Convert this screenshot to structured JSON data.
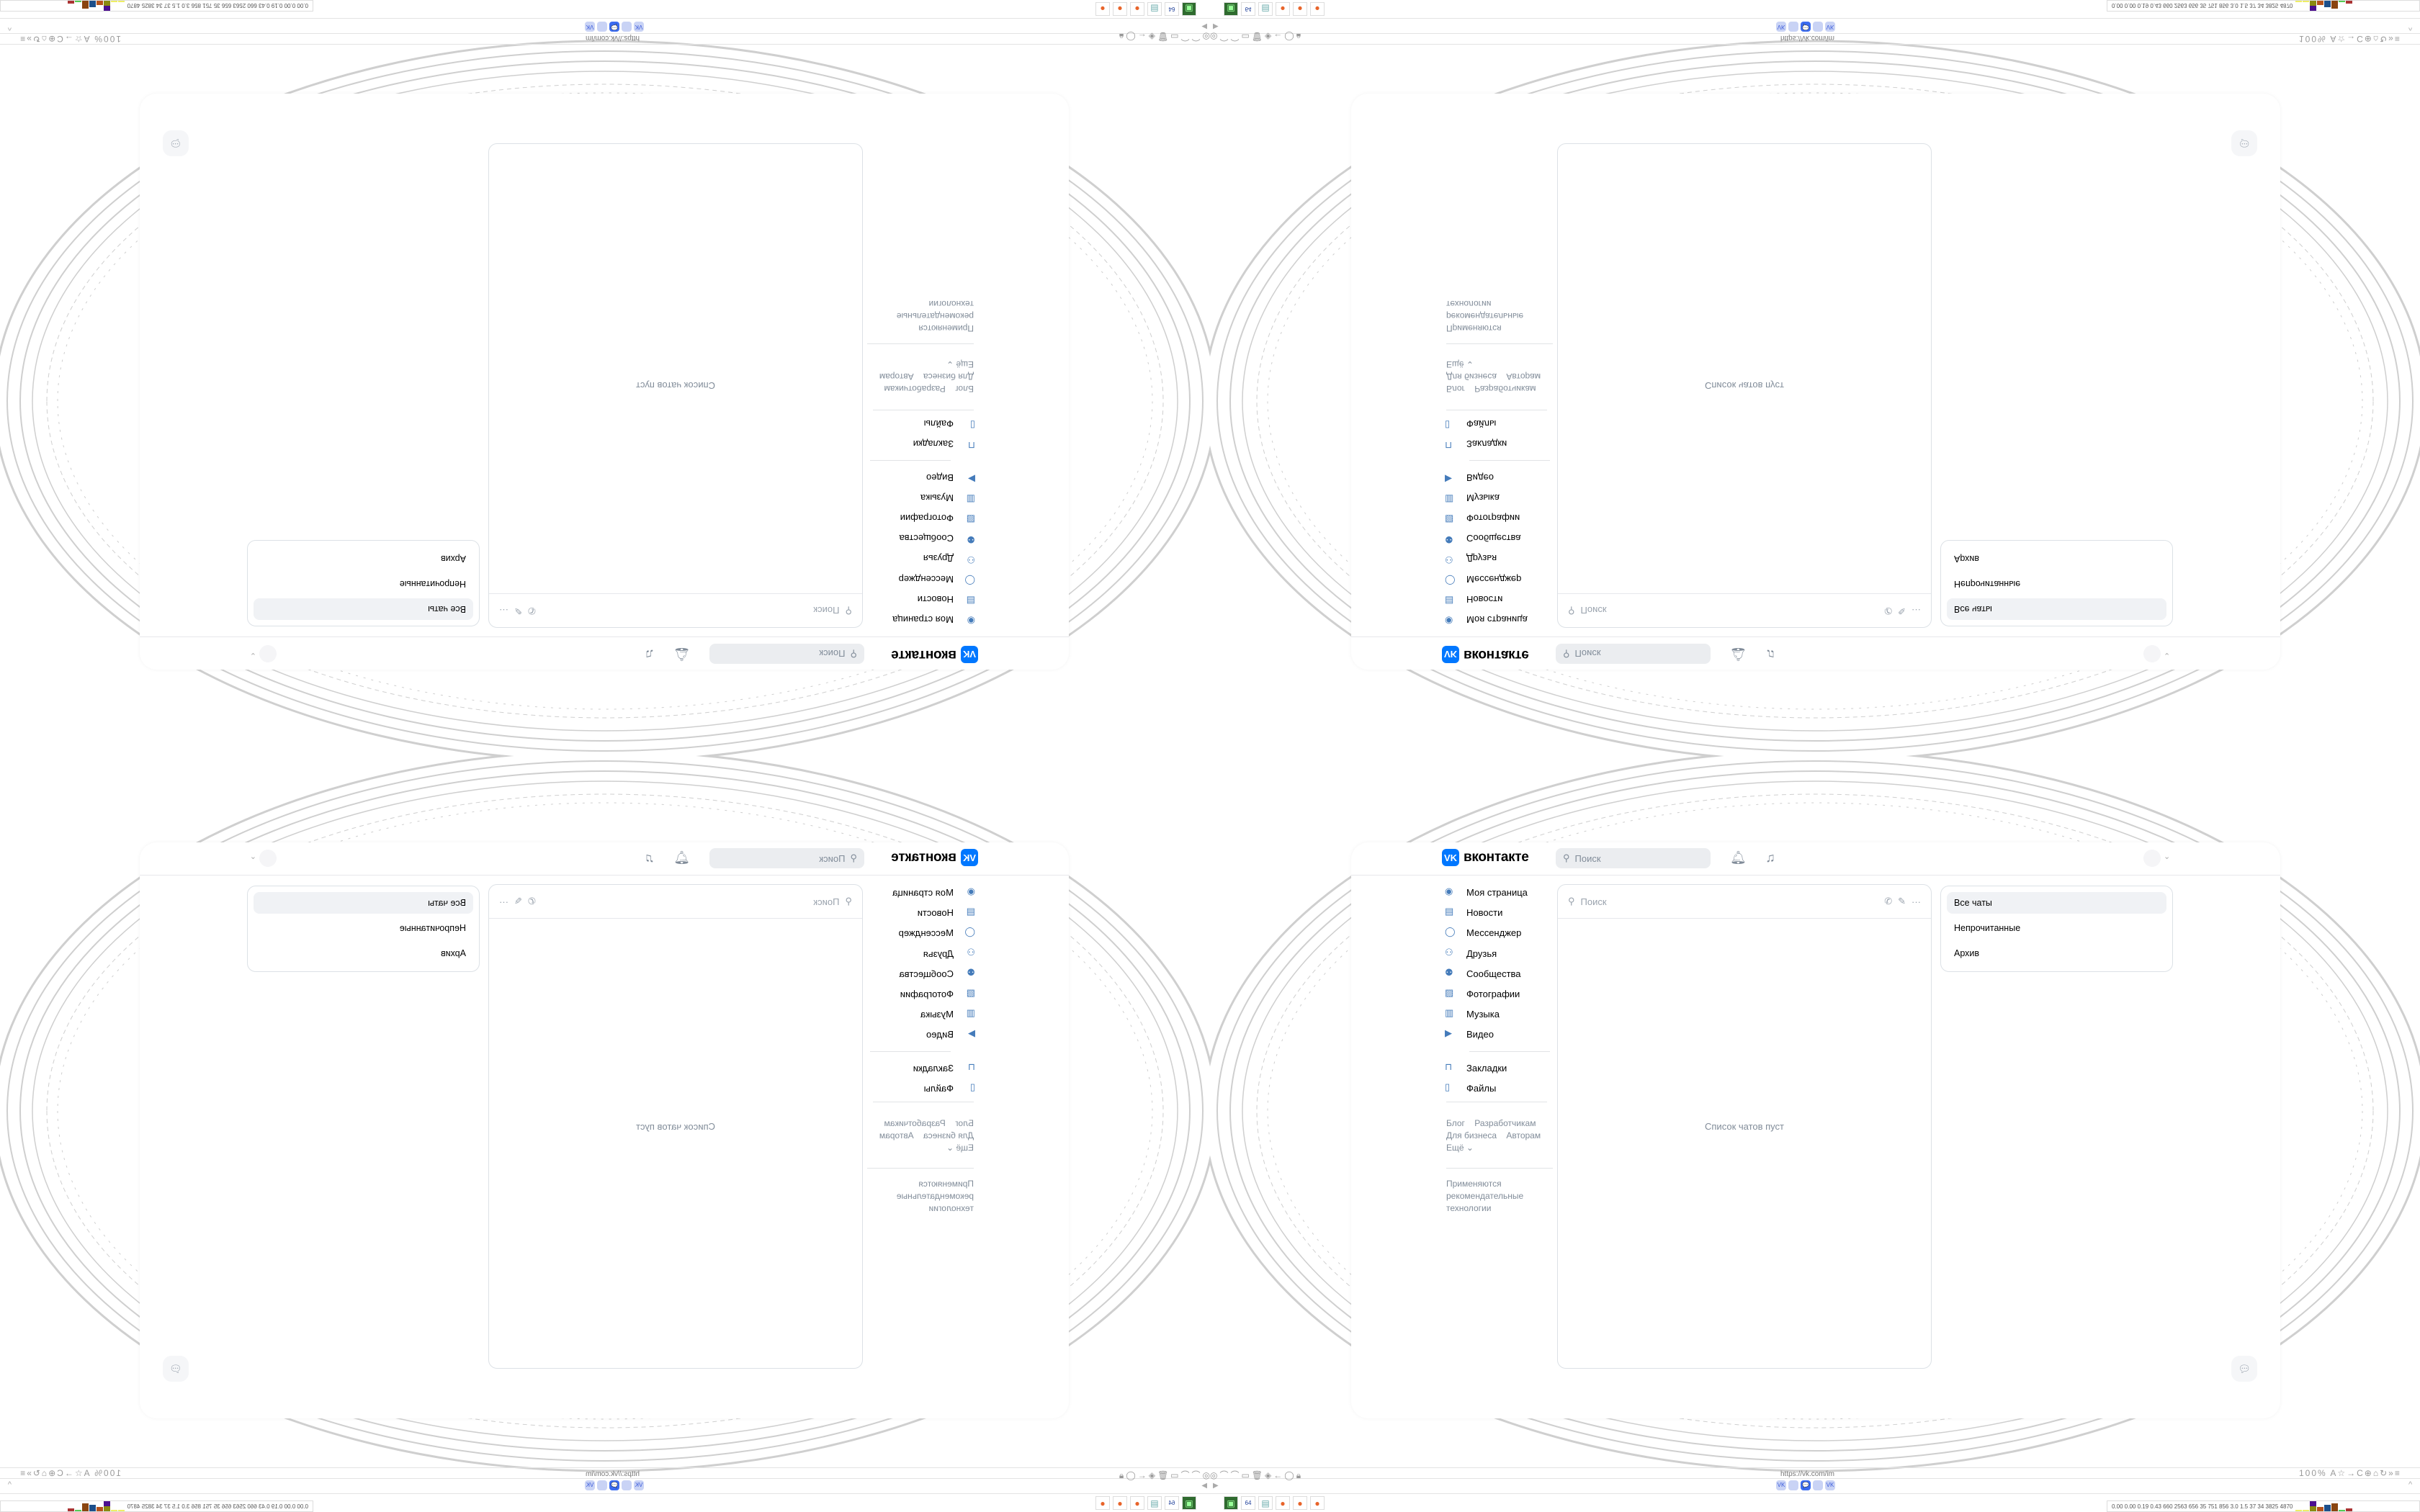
{
  "header": {
    "logo_text": "вконтакте",
    "logo_mark": "VK",
    "search_placeholder": "Поиск",
    "bell_icon": "bell-icon",
    "music_icon": "music-icon"
  },
  "sidebar": {
    "items": [
      {
        "label": "Моя страница",
        "icon": "user-circle-icon",
        "glyph": "◉"
      },
      {
        "label": "Новости",
        "icon": "news-icon",
        "glyph": "▤"
      },
      {
        "label": "Мессенджер",
        "icon": "message-icon",
        "glyph": "◯"
      },
      {
        "label": "Друзья",
        "icon": "friends-icon",
        "glyph": "⚇"
      },
      {
        "label": "Сообщества",
        "icon": "communities-icon",
        "glyph": "⚉"
      },
      {
        "label": "Фотографии",
        "icon": "photo-icon",
        "glyph": "▨"
      },
      {
        "label": "Музыка",
        "icon": "music-icon",
        "glyph": "▥"
      },
      {
        "label": "Видео",
        "icon": "video-icon",
        "glyph": "▶"
      }
    ],
    "secondary": [
      {
        "label": "Закладки",
        "icon": "bookmark-icon",
        "glyph": "⊓"
      },
      {
        "label": "Файлы",
        "icon": "file-icon",
        "glyph": "▯"
      }
    ],
    "links": [
      "Блог",
      "Разработчикам",
      "Для бизнеса",
      "Авторам",
      "Ещё ⌄"
    ],
    "notice": [
      "Применяются",
      "рекомендательные",
      "технологии"
    ]
  },
  "chat": {
    "search_placeholder": "Поиск",
    "empty_text": "Список чатов пуст"
  },
  "filters": {
    "items": [
      "Все чаты",
      "Непрочитанные",
      "Архив"
    ],
    "active": "Все чаты"
  },
  "browser": {
    "url": "https://vk.com/im",
    "zoom": "100%",
    "tabs": [
      "VK",
      "",
      "💬",
      "",
      "VK"
    ],
    "stats": "0.00 0.00 0.19 0.43 660 2563 656 35 751 856 3.0 1.5 37 34 3825 4870",
    "taskbar_labels": [
      "64"
    ]
  },
  "colors": {
    "accent": "#0077ff",
    "icon": "#447bba",
    "muted": "#818c99"
  }
}
